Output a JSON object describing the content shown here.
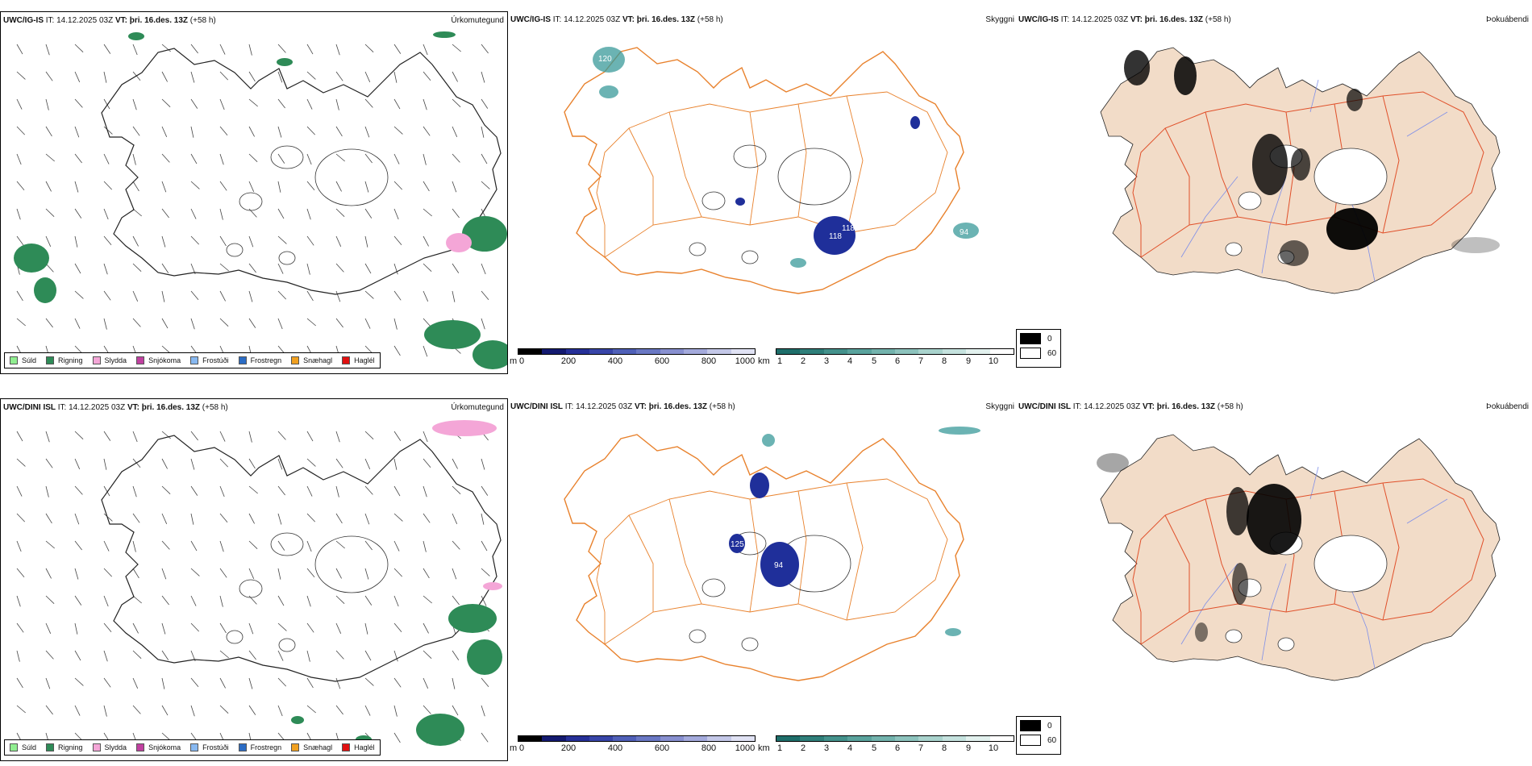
{
  "rows": [
    {
      "model": "UWC/IG-IS",
      "it_label": "IT:",
      "it_value": "14.12.2025 03Z",
      "vt_label": "VT:",
      "vt_value": "þri. 16.des. 13Z",
      "lead": "(+58 h)",
      "panels": {
        "precip_title": "Úrkomutegund",
        "visibility_title": "Skyggni",
        "fog_title": "Þokuábendi"
      },
      "visibility_labels": [
        "120",
        "118",
        "118",
        "94"
      ]
    },
    {
      "model": "UWC/DINI ISL",
      "it_label": "IT:",
      "it_value": "14.12.2025 03Z",
      "vt_label": "VT:",
      "vt_value": "þri. 16.des. 13Z",
      "lead": "(+58 h)",
      "panels": {
        "precip_title": "Úrkomutegund",
        "visibility_title": "Skyggni",
        "fog_title": "Þokuábendi"
      },
      "visibility_labels": [
        "125",
        "94"
      ]
    }
  ],
  "precip_legend": [
    {
      "label": "Súld",
      "color": "#90ee90"
    },
    {
      "label": "Rigning",
      "color": "#2e8b57"
    },
    {
      "label": "Slydda",
      "color": "#f4a6d7"
    },
    {
      "label": "Snjókoma",
      "color": "#c040a0"
    },
    {
      "label": "Frostúði",
      "color": "#87b8f0"
    },
    {
      "label": "Frostregn",
      "color": "#2b6cc4"
    },
    {
      "label": "Snæhagl",
      "color": "#f0a020"
    },
    {
      "label": "Haglél",
      "color": "#e01010"
    }
  ],
  "ceiling_bar": {
    "unit": "m",
    "ticks": [
      "0",
      "200",
      "400",
      "600",
      "800",
      "1000"
    ]
  },
  "visibility_bar": {
    "unit": "km",
    "ticks": [
      "1",
      "2",
      "3",
      "4",
      "5",
      "6",
      "7",
      "8",
      "9",
      "10"
    ]
  },
  "cloud_key": {
    "dark_label": "0",
    "light_label": "60"
  },
  "colors": {
    "rain": "#2e8b57",
    "sleet": "#f4a6d7",
    "ceiling": "#1f2f9a",
    "visibility": "#3a9a9a",
    "road": "#e8812c",
    "road_red": "#e0502a",
    "land_fog": "#f2dcc8",
    "river": "#7f8fe8"
  }
}
